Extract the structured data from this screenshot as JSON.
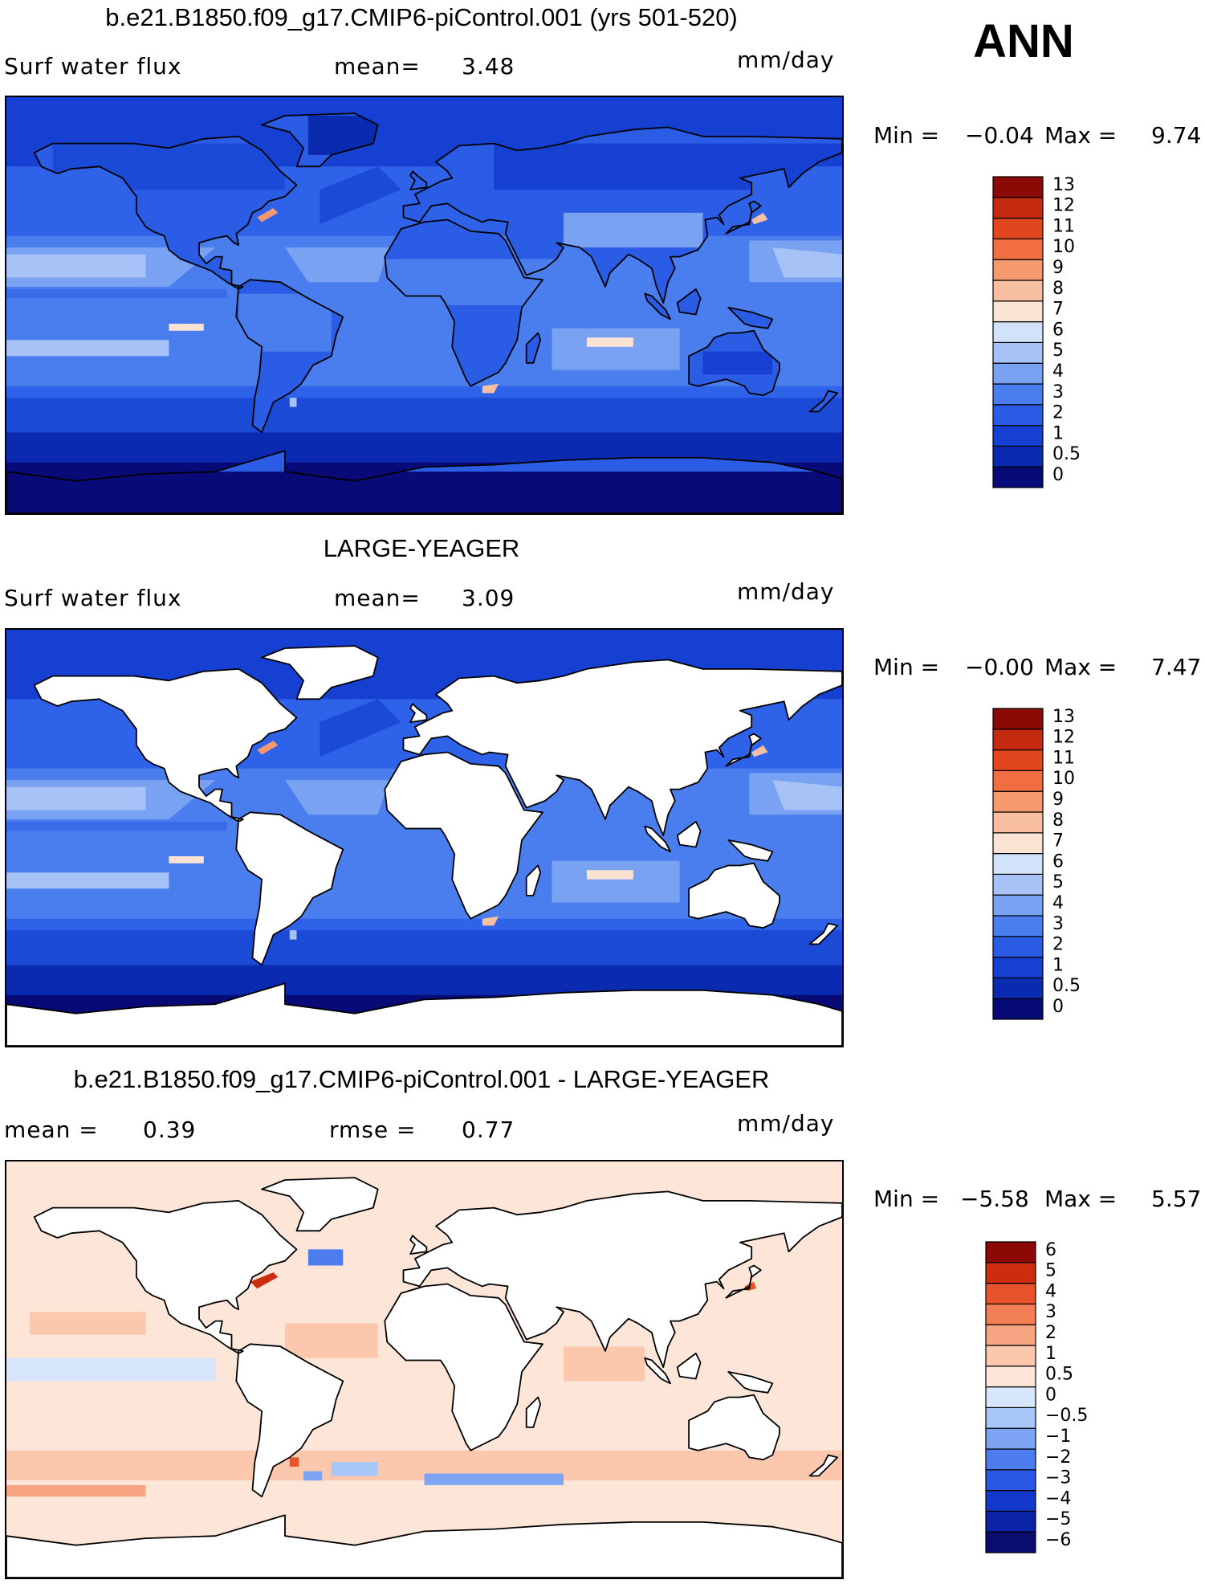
{
  "season": "ANN",
  "units": "mm/day",
  "panels": [
    {
      "id": "model",
      "title": "b.e21.B1850.f09_g17.CMIP6-piControl.001 (yrs 501-520)",
      "left_label": "Surf water flux",
      "stat1_label": "mean=",
      "stat1_value": "3.48",
      "units": "mm/day",
      "min_label": "Min =",
      "min_value": "−0.04",
      "max_label": "Max =",
      "max_value": "9.74",
      "land_filled": true
    },
    {
      "id": "obs",
      "title": "LARGE-YEAGER",
      "left_label": "Surf water flux",
      "stat1_label": "mean=",
      "stat1_value": "3.09",
      "units": "mm/day",
      "min_label": "Min =",
      "min_value": "−0.00",
      "max_label": "Max =",
      "max_value": "7.47",
      "land_filled": false
    },
    {
      "id": "diff",
      "title": "b.e21.B1850.f09_g17.CMIP6-piControl.001 - LARGE-YEAGER",
      "stat1_label": "mean =",
      "stat1_value": "0.39",
      "stat2_label": "rmse =",
      "stat2_value": "0.77",
      "units": "mm/day",
      "min_label": "Min =",
      "min_value": "−5.58",
      "max_label": "Max =",
      "max_value": "5.57",
      "land_filled": false
    }
  ],
  "chart_data": [
    {
      "type": "heatmap",
      "title": "b.e21.B1850.f09_g17.CMIP6-piControl.001 (yrs 501-520)",
      "variable": "Surf water flux",
      "units": "mm/day",
      "mean": 3.48,
      "min": -0.04,
      "max": 9.74,
      "colorbar_levels": [
        "0",
        "0.5",
        "1",
        "2",
        "3",
        "4",
        "5",
        "6",
        "7",
        "8",
        "9",
        "10",
        "11",
        "12",
        "13"
      ],
      "colorbar_colors": [
        "#080a78",
        "#0a2ab0",
        "#1540d2",
        "#2a5ce6",
        "#4a7eee",
        "#7aa2f2",
        "#a6c2f6",
        "#d2e2fa",
        "#fbe3d4",
        "#f8bfa0",
        "#f59a6e",
        "#f06e42",
        "#e2461f",
        "#c42a10",
        "#8a0a06"
      ]
    },
    {
      "type": "heatmap",
      "title": "LARGE-YEAGER",
      "variable": "Surf water flux",
      "units": "mm/day",
      "mean": 3.09,
      "min": -0.0,
      "max": 7.47,
      "colorbar_levels": [
        "0",
        "0.5",
        "1",
        "2",
        "3",
        "4",
        "5",
        "6",
        "7",
        "8",
        "9",
        "10",
        "11",
        "12",
        "13"
      ],
      "colorbar_colors": [
        "#080a78",
        "#0a2ab0",
        "#1540d2",
        "#2a5ce6",
        "#4a7eee",
        "#7aa2f2",
        "#a6c2f6",
        "#d2e2fa",
        "#fbe3d4",
        "#f8bfa0",
        "#f59a6e",
        "#f06e42",
        "#e2461f",
        "#c42a10",
        "#8a0a06"
      ]
    },
    {
      "type": "heatmap",
      "title": "b.e21.B1850.f09_g17.CMIP6-piControl.001 - LARGE-YEAGER",
      "units": "mm/day",
      "mean": 0.39,
      "rmse": 0.77,
      "min": -5.58,
      "max": 5.57,
      "colorbar_levels": [
        "−6",
        "−5",
        "−4",
        "−3",
        "−2",
        "−1",
        "−0.5",
        "0",
        "0.5",
        "1",
        "2",
        "3",
        "4",
        "5",
        "6"
      ],
      "colorbar_colors": [
        "#0a0d6e",
        "#0b22a6",
        "#1438cc",
        "#2a58e4",
        "#4c7cee",
        "#7ea4f4",
        "#a9c6f8",
        "#d8e6fb",
        "#fde6d8",
        "#fbc8ae",
        "#f7a582",
        "#f27e55",
        "#e8532b",
        "#cc2d0f",
        "#8b0a06"
      ]
    }
  ]
}
